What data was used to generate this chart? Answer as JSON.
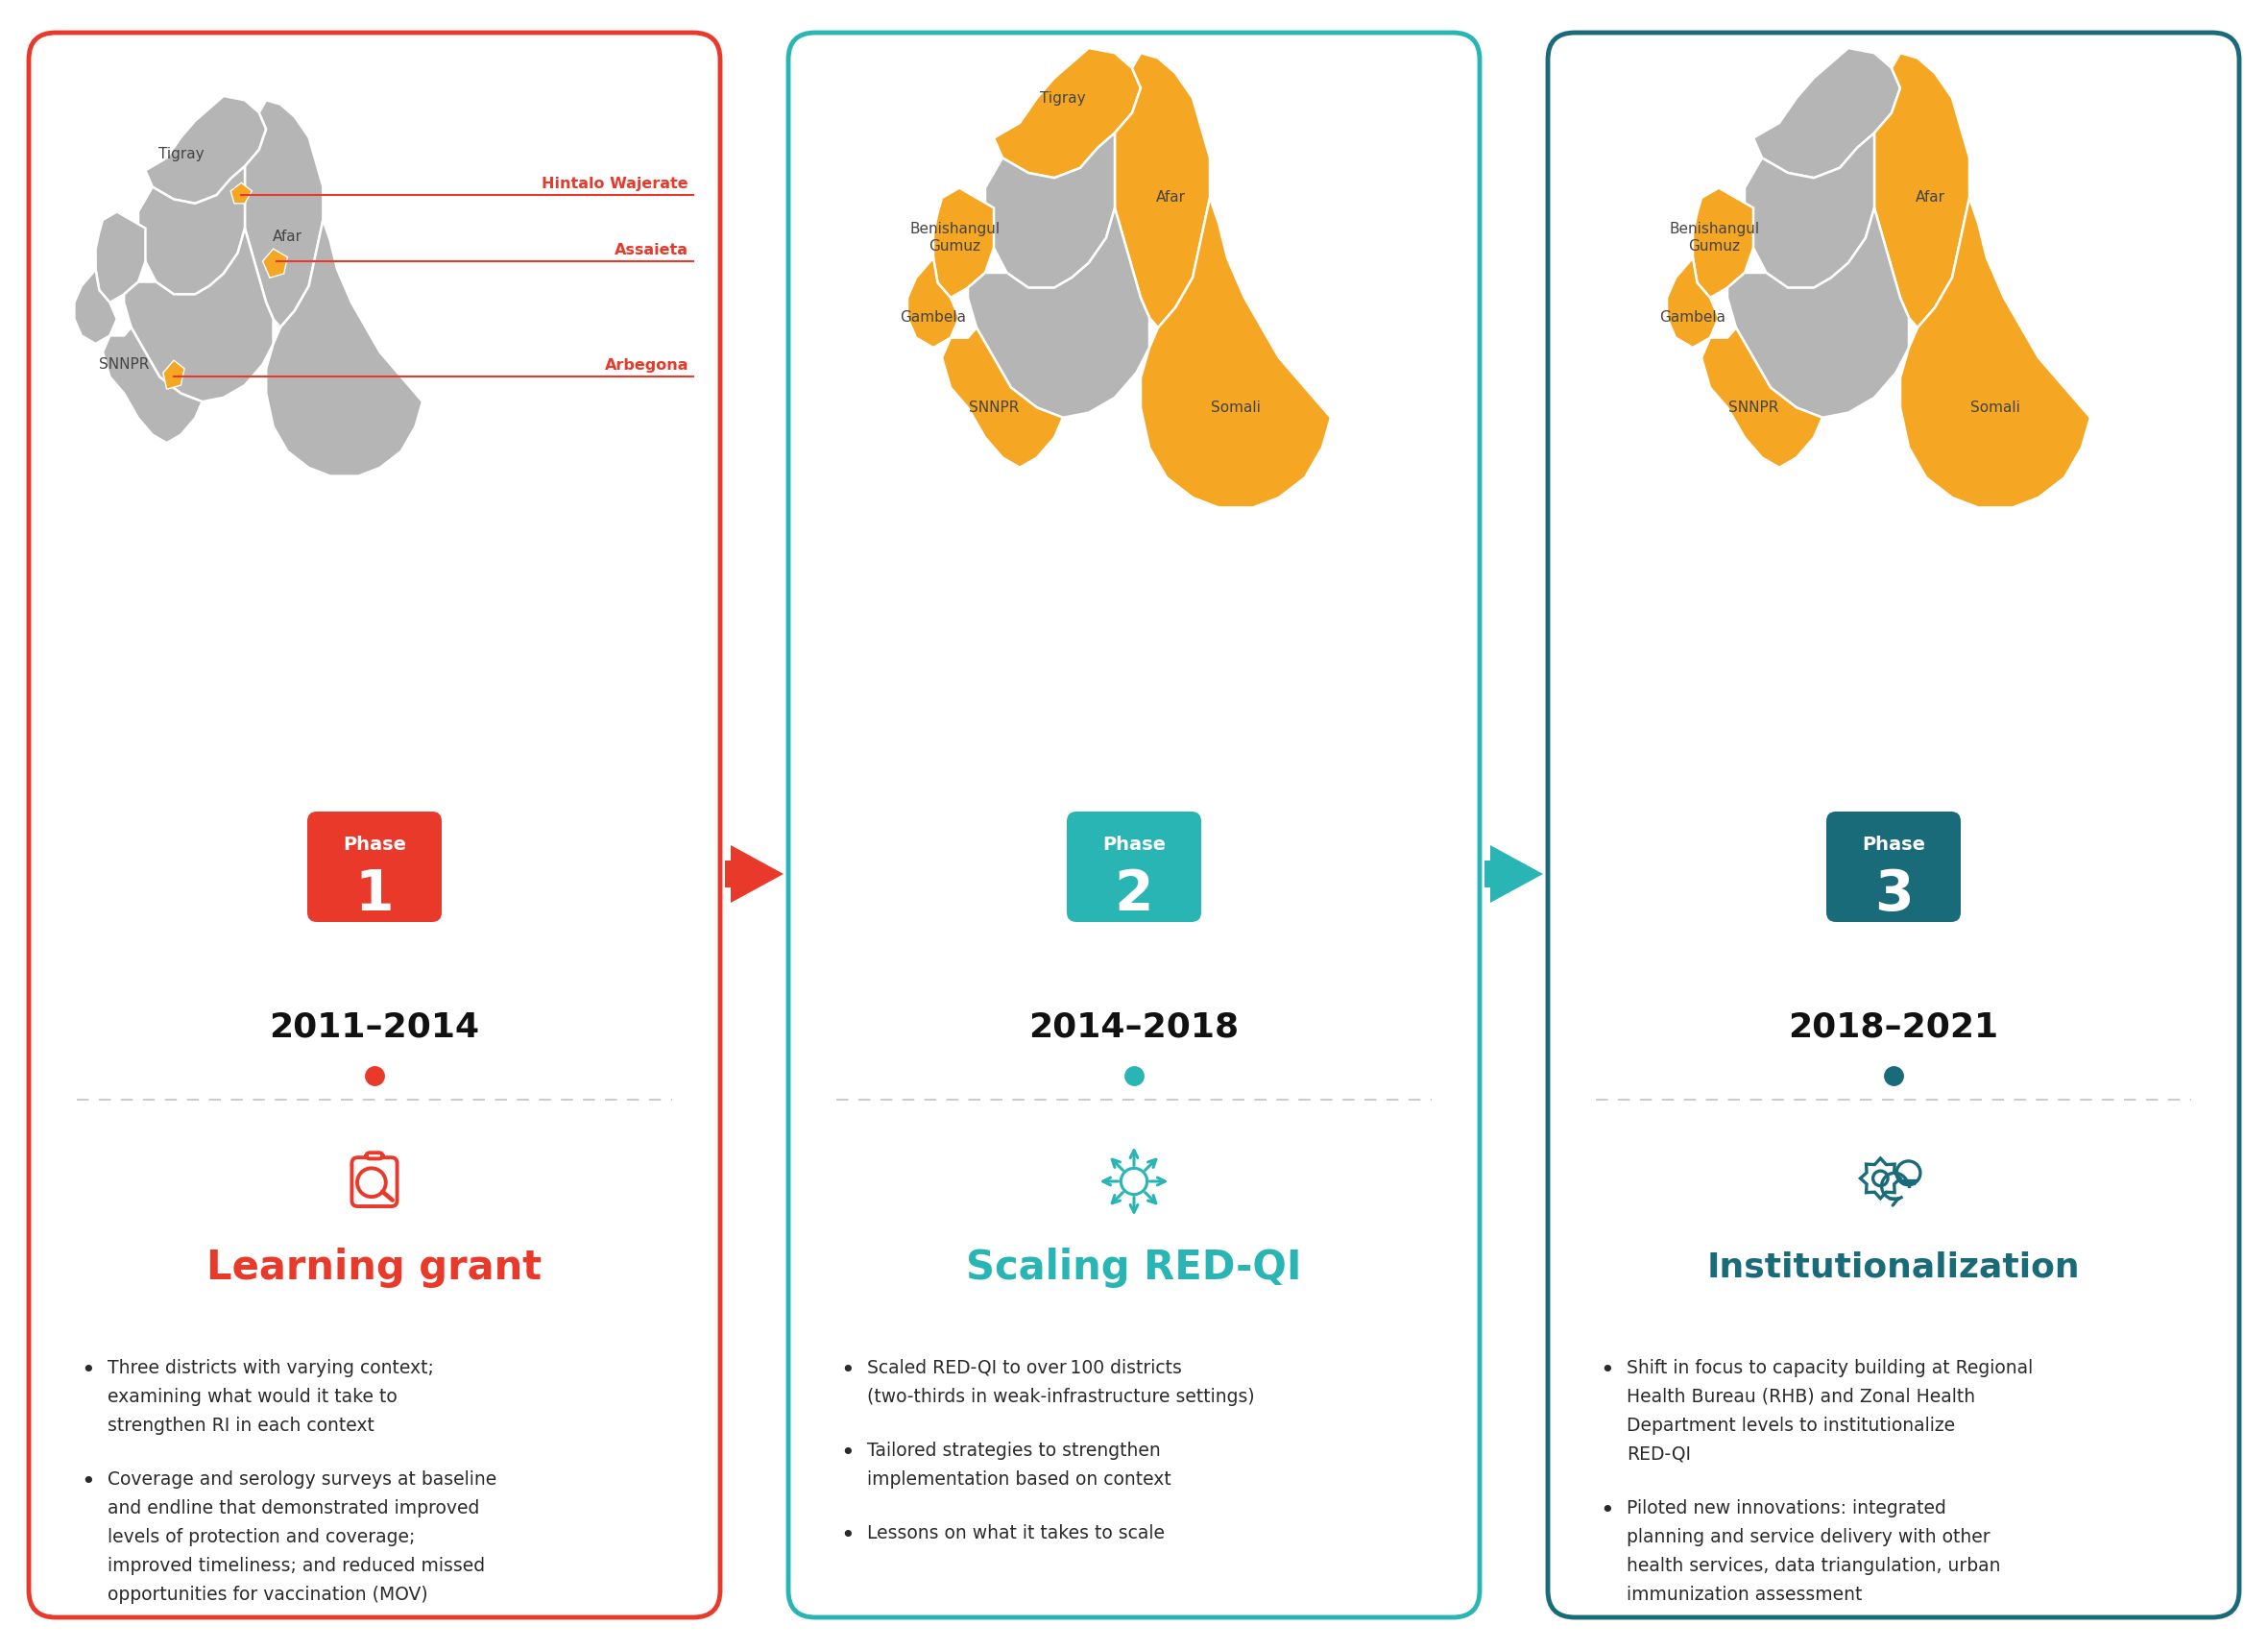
{
  "background_color": "#ffffff",
  "panel_border_colors": [
    "#e8392a",
    "#2ab5b5",
    "#1a6b7a"
  ],
  "phase_box_colors": [
    "#e8392a",
    "#2ab5b5",
    "#1a6b7a"
  ],
  "year_labels": [
    "2011–2014",
    "2014–2018",
    "2018–2021"
  ],
  "section_titles": [
    "Learning grant",
    "Scaling RED-QI",
    "Institutionalization"
  ],
  "title_colors": [
    "#e8392a",
    "#2ab5b5",
    "#1a6b7a"
  ],
  "dot_colors": [
    "#e8392a",
    "#2ab5b5",
    "#1a6b7a"
  ],
  "map_highlighted": "#f5a623",
  "map_base": "#b5b5b5",
  "phase1_bullets": [
    "Three districts with varying context;\nexamining what would it take to\nstrengthen RI in each context",
    "Coverage and serology surveys at baseline\nand endline that demonstrated improved\nlevels of protection and coverage;\nimproved timeliness; and reduced missed\nopportunities for vaccination (MOV)"
  ],
  "phase2_bullets": [
    "Scaled RED-QI to over 100 districts\n(two-thirds in weak-infrastructure settings)",
    "Tailored strategies to strengthen\nimplementation based on context",
    "Lessons on what it takes to scale"
  ],
  "phase3_bullets": [
    "Shift in focus to capacity building at Regional\nHealth Bureau (RHB) and Zonal Health\nDepartment levels to institutionalize\nRED-QI",
    "Piloted new innovations: integrated\nplanning and service delivery with other\nhealth services, data triangulation, urban\nimmunization assessment"
  ]
}
